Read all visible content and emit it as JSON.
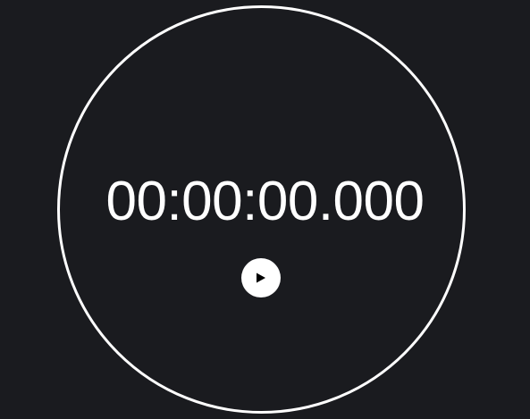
{
  "stopwatch": {
    "time": "00:00:00.000",
    "play_icon": "play-icon"
  },
  "colors": {
    "background": "#1a1b1f",
    "ring": "#ffffff",
    "text": "#ffffff",
    "button": "#ffffff",
    "icon": "#000000"
  }
}
